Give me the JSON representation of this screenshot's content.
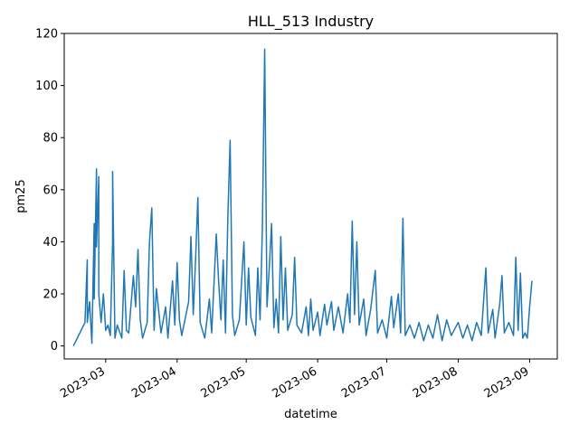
{
  "chart_data": {
    "type": "line",
    "title": "HLL_513 Industry",
    "xlabel": "datetime",
    "ylabel": "pm25",
    "x_is_date": true,
    "xlim": [
      "2023-02-11",
      "2023-09-13"
    ],
    "ylim": [
      -5,
      120
    ],
    "grid": false,
    "legend": "none",
    "x_ticks": [
      "2023-03",
      "2023-04",
      "2023-05",
      "2023-06",
      "2023-07",
      "2023-08",
      "2023-09"
    ],
    "y_ticks": [
      0,
      20,
      40,
      60,
      80,
      100,
      120
    ],
    "series": [
      {
        "color": "#1f77b4",
        "points": [
          [
            "2023-02-15",
            0
          ],
          [
            "2023-02-20",
            9
          ],
          [
            "2023-02-21",
            33
          ],
          [
            "2023-02-21",
            9
          ],
          [
            "2023-02-22",
            17
          ],
          [
            "2023-02-23",
            1
          ],
          [
            "2023-02-24",
            47
          ],
          [
            "2023-02-24",
            18
          ],
          [
            "2023-02-25",
            68
          ],
          [
            "2023-02-25",
            38
          ],
          [
            "2023-02-26",
            65
          ],
          [
            "2023-02-26",
            20
          ],
          [
            "2023-02-27",
            9
          ],
          [
            "2023-02-28",
            20
          ],
          [
            "2023-03-01",
            6
          ],
          [
            "2023-03-02",
            8
          ],
          [
            "2023-03-03",
            4
          ],
          [
            "2023-03-04",
            40
          ],
          [
            "2023-03-04",
            67
          ],
          [
            "2023-03-05",
            3
          ],
          [
            "2023-03-06",
            8
          ],
          [
            "2023-03-08",
            3
          ],
          [
            "2023-03-09",
            29
          ],
          [
            "2023-03-10",
            6
          ],
          [
            "2023-03-11",
            5
          ],
          [
            "2023-03-13",
            27
          ],
          [
            "2023-03-14",
            15
          ],
          [
            "2023-03-15",
            37
          ],
          [
            "2023-03-16",
            10
          ],
          [
            "2023-03-17",
            3
          ],
          [
            "2023-03-19",
            9
          ],
          [
            "2023-03-20",
            40
          ],
          [
            "2023-03-21",
            53
          ],
          [
            "2023-03-22",
            6
          ],
          [
            "2023-03-23",
            22
          ],
          [
            "2023-03-25",
            5
          ],
          [
            "2023-03-27",
            15
          ],
          [
            "2023-03-28",
            3
          ],
          [
            "2023-03-30",
            25
          ],
          [
            "2023-03-31",
            8
          ],
          [
            "2023-04-01",
            32
          ],
          [
            "2023-04-02",
            10
          ],
          [
            "2023-04-03",
            4
          ],
          [
            "2023-04-06",
            17
          ],
          [
            "2023-04-07",
            42
          ],
          [
            "2023-04-08",
            12
          ],
          [
            "2023-04-09",
            33
          ],
          [
            "2023-04-10",
            57
          ],
          [
            "2023-04-11",
            9
          ],
          [
            "2023-04-13",
            3
          ],
          [
            "2023-04-15",
            18
          ],
          [
            "2023-04-16",
            5
          ],
          [
            "2023-04-18",
            43
          ],
          [
            "2023-04-19",
            25
          ],
          [
            "2023-04-20",
            10
          ],
          [
            "2023-04-21",
            33
          ],
          [
            "2023-04-22",
            5
          ],
          [
            "2023-04-23",
            49
          ],
          [
            "2023-04-24",
            79
          ],
          [
            "2023-04-25",
            12
          ],
          [
            "2023-04-26",
            4
          ],
          [
            "2023-04-28",
            10
          ],
          [
            "2023-04-30",
            40
          ],
          [
            "2023-05-01",
            8
          ],
          [
            "2023-05-02",
            30
          ],
          [
            "2023-05-03",
            11
          ],
          [
            "2023-05-05",
            4
          ],
          [
            "2023-05-06",
            30
          ],
          [
            "2023-05-07",
            10
          ],
          [
            "2023-05-08",
            45
          ],
          [
            "2023-05-09",
            114
          ],
          [
            "2023-05-10",
            15
          ],
          [
            "2023-05-11",
            30
          ],
          [
            "2023-05-12",
            47
          ],
          [
            "2023-05-13",
            7
          ],
          [
            "2023-05-14",
            18
          ],
          [
            "2023-05-15",
            5
          ],
          [
            "2023-05-16",
            42
          ],
          [
            "2023-05-17",
            10
          ],
          [
            "2023-05-18",
            30
          ],
          [
            "2023-05-19",
            6
          ],
          [
            "2023-05-21",
            12
          ],
          [
            "2023-05-22",
            34
          ],
          [
            "2023-05-23",
            8
          ],
          [
            "2023-05-25",
            5
          ],
          [
            "2023-05-27",
            15
          ],
          [
            "2023-05-28",
            4
          ],
          [
            "2023-05-29",
            18
          ],
          [
            "2023-05-30",
            6
          ],
          [
            "2023-06-01",
            13
          ],
          [
            "2023-06-02",
            4
          ],
          [
            "2023-06-04",
            16
          ],
          [
            "2023-06-05",
            8
          ],
          [
            "2023-06-07",
            17
          ],
          [
            "2023-06-08",
            6
          ],
          [
            "2023-06-10",
            15
          ],
          [
            "2023-06-12",
            5
          ],
          [
            "2023-06-14",
            20
          ],
          [
            "2023-06-15",
            9
          ],
          [
            "2023-06-16",
            48
          ],
          [
            "2023-06-17",
            12
          ],
          [
            "2023-06-18",
            40
          ],
          [
            "2023-06-19",
            8
          ],
          [
            "2023-06-21",
            18
          ],
          [
            "2023-06-22",
            4
          ],
          [
            "2023-06-24",
            14
          ],
          [
            "2023-06-26",
            29
          ],
          [
            "2023-06-27",
            5
          ],
          [
            "2023-06-29",
            10
          ],
          [
            "2023-07-01",
            3
          ],
          [
            "2023-07-03",
            19
          ],
          [
            "2023-07-04",
            7
          ],
          [
            "2023-07-06",
            20
          ],
          [
            "2023-07-07",
            5
          ],
          [
            "2023-07-08",
            49
          ],
          [
            "2023-07-09",
            4
          ],
          [
            "2023-07-11",
            8
          ],
          [
            "2023-07-13",
            3
          ],
          [
            "2023-07-15",
            9
          ],
          [
            "2023-07-17",
            2
          ],
          [
            "2023-07-19",
            8
          ],
          [
            "2023-07-21",
            3
          ],
          [
            "2023-07-23",
            12
          ],
          [
            "2023-07-25",
            2
          ],
          [
            "2023-07-27",
            10
          ],
          [
            "2023-07-29",
            4
          ],
          [
            "2023-08-01",
            9
          ],
          [
            "2023-08-03",
            3
          ],
          [
            "2023-08-05",
            8
          ],
          [
            "2023-08-07",
            2
          ],
          [
            "2023-08-09",
            9
          ],
          [
            "2023-08-11",
            4
          ],
          [
            "2023-08-13",
            30
          ],
          [
            "2023-08-14",
            5
          ],
          [
            "2023-08-16",
            14
          ],
          [
            "2023-08-17",
            3
          ],
          [
            "2023-08-19",
            16
          ],
          [
            "2023-08-20",
            27
          ],
          [
            "2023-08-21",
            5
          ],
          [
            "2023-08-23",
            9
          ],
          [
            "2023-08-25",
            4
          ],
          [
            "2023-08-26",
            34
          ],
          [
            "2023-08-27",
            6
          ],
          [
            "2023-08-28",
            28
          ],
          [
            "2023-08-29",
            3
          ],
          [
            "2023-08-30",
            5
          ],
          [
            "2023-08-31",
            3
          ],
          [
            "2023-09-01",
            15
          ],
          [
            "2023-09-02",
            25
          ]
        ]
      }
    ]
  }
}
